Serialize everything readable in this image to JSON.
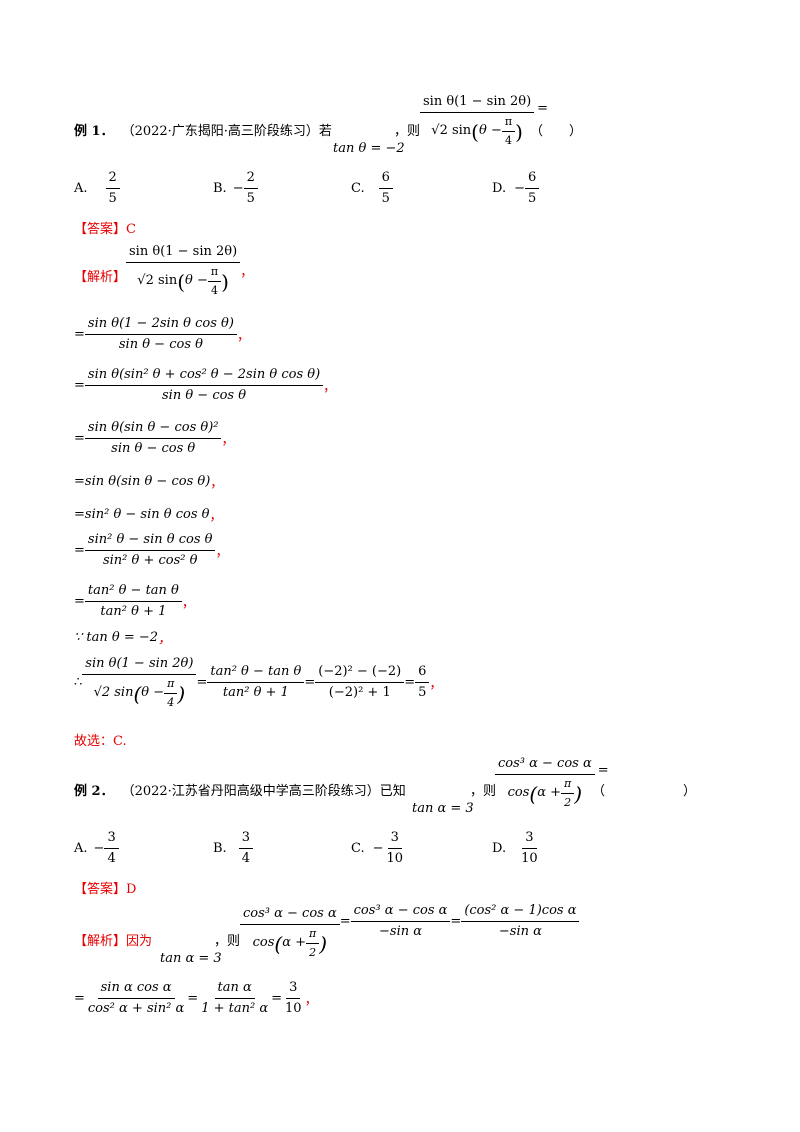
{
  "example1": {
    "label": "例 1．",
    "source": "（2022·广东揭阳·高三阶段练习）若",
    "cond": "tan θ = −2",
    "then": "，则",
    "expr_num": "sin θ(1 − sin 2θ)",
    "expr_den_sqrt": "√2 sin",
    "expr_den_inner": "θ −",
    "pi": "π",
    "four": "4",
    "eq": "=",
    "paren": "（　　）",
    "options": [
      {
        "key": "A.",
        "sign": "",
        "num": "2",
        "den": "5"
      },
      {
        "key": "B.",
        "sign": "−",
        "num": "2",
        "den": "5"
      },
      {
        "key": "C.",
        "sign": "",
        "num": "6",
        "den": "5"
      },
      {
        "key": "D.",
        "sign": "−",
        "num": "6",
        "den": "5"
      }
    ],
    "answer_tag": "【答案】",
    "answer": "C",
    "analysis_tag": "【解析】",
    "steps": [
      {
        "num": "sin θ(1 − 2sin θ cos θ)",
        "den": "sin θ − cos θ"
      },
      {
        "num": "sin θ(sin² θ + cos² θ − 2sin θ cos θ)",
        "den": "sin θ − cos θ"
      },
      {
        "num": "sin θ(sin θ − cos θ)²",
        "den": "sin θ − cos θ"
      },
      {
        "plain": "sin θ(sin θ − cos θ)"
      },
      {
        "plain": "sin² θ − sin θ cos θ"
      },
      {
        "num": "sin² θ − sin θ cos θ",
        "den": "sin² θ + cos² θ"
      },
      {
        "num": "tan² θ − tan θ",
        "den": "tan² θ + 1"
      }
    ],
    "because": "∵ tan θ = −2",
    "therefore": "∴",
    "final_frac2_num": "tan² θ − tan θ",
    "final_frac2_den": "tan² θ + 1",
    "final_frac3_num": "(−2)² − (−2)",
    "final_frac3_den": "(−2)² + 1",
    "final_num": "6",
    "final_den": "5",
    "comma": "，",
    "choose": "故选：C."
  },
  "example2": {
    "label": "例 2．",
    "source": "（2022·江苏省丹阳高级中学高三阶段练习）已知",
    "cond": "tan α = 3",
    "then": "，则",
    "expr_num": "cos³ α − cos α",
    "expr_den": "cos",
    "expr_den_inner": "α +",
    "pi": "π",
    "two": "2",
    "eq": "=",
    "paren": "（　　　　　　）",
    "options": [
      {
        "key": "A.",
        "sign": "−",
        "num": "3",
        "den": "4"
      },
      {
        "key": "B.",
        "sign": "",
        "num": "3",
        "den": "4"
      },
      {
        "key": "C.",
        "sign": "−",
        "num": "3",
        "den": "10"
      },
      {
        "key": "D.",
        "sign": "",
        "num": "3",
        "den": "10"
      }
    ],
    "answer_tag": "【答案】",
    "answer": "D",
    "analysis_tag": "【解析】",
    "because_text": "因为",
    "then2": "，则",
    "f2_num": "cos³ α − cos α",
    "f2_den": "−sin α",
    "f3_num": "(cos² α − 1)cos α",
    "f3_den": "−sin α",
    "l2_f1_num": "sin α cos α",
    "l2_f1_den": "cos² α + sin² α",
    "l2_f2_num": "tan α",
    "l2_f2_den": "1 + tan² α",
    "l2_f3_num": "3",
    "l2_f3_den": "10",
    "comma": "，"
  }
}
